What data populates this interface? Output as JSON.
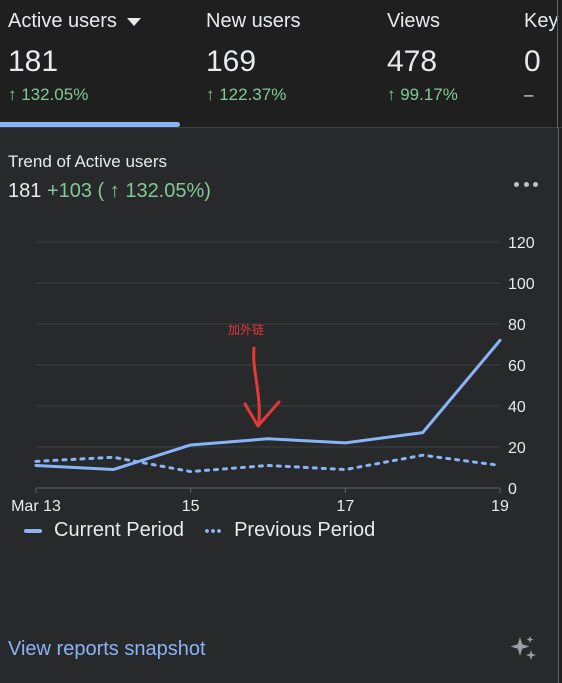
{
  "metrics": [
    {
      "label": "Active users",
      "value": "181",
      "change": "↑ 132.05%",
      "has_dropdown": true,
      "positive": true
    },
    {
      "label": "New users",
      "value": "169",
      "change": "↑ 122.37%",
      "positive": true
    },
    {
      "label": "Views",
      "value": "478",
      "change": "↑ 99.17%",
      "positive": true
    },
    {
      "label": "Key",
      "value": "0",
      "change": "–",
      "positive": false
    }
  ],
  "trend": {
    "title": "Trend of Active users",
    "total": "181",
    "delta": "+103 ( ↑ 132.05%)"
  },
  "chart_data": {
    "type": "line",
    "x": [
      "Mar 13",
      "Mar 14",
      "Mar 15",
      "Mar 16",
      "Mar 17",
      "Mar 18",
      "Mar 19"
    ],
    "x_tick_labels": [
      "Mar 13",
      "15",
      "17",
      "19"
    ],
    "x_tick_indices": [
      0,
      2,
      4,
      6
    ],
    "series": [
      {
        "name": "Current Period",
        "style": "solid",
        "color": "#8ab4f8",
        "values": [
          11,
          9,
          21,
          24,
          22,
          27,
          72
        ]
      },
      {
        "name": "Previous Period",
        "style": "dotted",
        "color": "#8ab4f8",
        "values": [
          13,
          15,
          8,
          11,
          9,
          16,
          11
        ]
      }
    ],
    "ylim": [
      0,
      120
    ],
    "y_ticks": [
      0,
      20,
      40,
      60,
      80,
      100,
      120
    ],
    "grid": true,
    "y_axis_position": "right",
    "legend_position": "bottom-left",
    "annotation": {
      "text": "加外链",
      "color": "#e53935"
    }
  },
  "footer": {
    "link_label": "View reports snapshot"
  },
  "colors": {
    "background": "#1f1f20",
    "card": "#28292a",
    "accent": "#8ab4f8",
    "positive": "#81c995",
    "annotation": "#e53935"
  }
}
